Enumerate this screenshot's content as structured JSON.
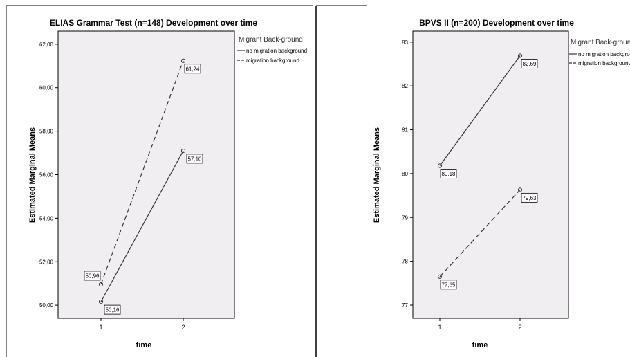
{
  "chart_data": [
    {
      "type": "line",
      "title": "ELIAS Grammar Test (n=148) Development over time",
      "xlabel": "time",
      "ylabel": "Estimated Marginal Means",
      "categories": [
        "1",
        "2"
      ],
      "yticks": [
        "50,00",
        "52,00",
        "54,00",
        "56,00",
        "58,00",
        "60,00",
        "62,00"
      ],
      "ylim": [
        49.4,
        62.6
      ],
      "legend_title": "Migrant Back-ground",
      "legend_position": "right",
      "series": [
        {
          "name": "no migration background",
          "style": "solid",
          "values": [
            50.16,
            57.1
          ],
          "labels": [
            "50,16",
            "57,10"
          ]
        },
        {
          "name": "migration background",
          "style": "dashed",
          "values": [
            50.96,
            61.24
          ],
          "labels": [
            "50,96",
            "61,24"
          ]
        }
      ]
    },
    {
      "type": "line",
      "title": "BPVS II (n=200) Development over time",
      "xlabel": "time",
      "ylabel": "Estimated Marginal Means",
      "categories": [
        "1",
        "2"
      ],
      "yticks": [
        "77",
        "78",
        "79",
        "80",
        "81",
        "82",
        "83"
      ],
      "ylim": [
        76.7,
        83.25
      ],
      "legend_title": "Migrant Back-ground",
      "legend_position": "right",
      "series": [
        {
          "name": "no migration background",
          "style": "solid",
          "values": [
            80.18,
            82.69
          ],
          "labels": [
            "80,18",
            "82,69"
          ]
        },
        {
          "name": "migration background",
          "style": "dashed",
          "values": [
            77.65,
            79.63
          ],
          "labels": [
            "77,65",
            "79,63"
          ]
        }
      ]
    }
  ],
  "colors": {
    "plot_background": "#f1eef2",
    "line": "#333333",
    "frame": "#000000"
  }
}
